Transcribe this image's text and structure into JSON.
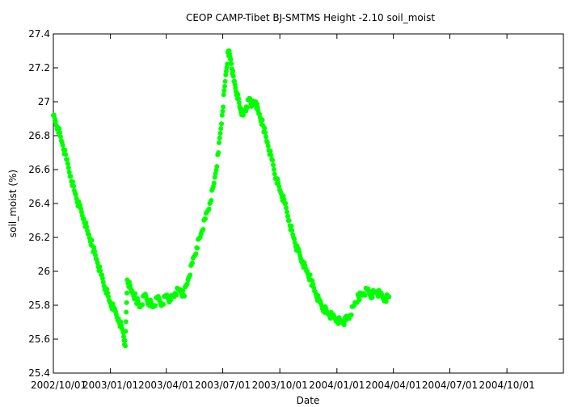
{
  "chart_data": {
    "type": "scatter",
    "title": "CEOP CAMP-Tibet BJ-SMTMS Height -2.10 soil_moist",
    "xlabel": "Date",
    "ylabel": "soil_moist (%)",
    "ylim": [
      25.4,
      27.4
    ],
    "xlim": [
      "2002-10-01",
      "2004-12-31"
    ],
    "yticks": [
      "25.4",
      "25.6",
      "25.8",
      "26",
      "26.2",
      "26.4",
      "26.6",
      "26.8",
      "27",
      "27.2",
      "27.4"
    ],
    "xticks": [
      {
        "date": "2002-10-01",
        "label": "2002/10/01"
      },
      {
        "date": "2003-01-01",
        "label": "2003/01/01"
      },
      {
        "date": "2003-04-01",
        "label": "2003/04/01"
      },
      {
        "date": "2003-07-01",
        "label": "2003/07/01"
      },
      {
        "date": "2003-10-01",
        "label": "2003/10/01"
      },
      {
        "date": "2004-01-01",
        "label": "2004/01/01"
      },
      {
        "date": "2004-04-01",
        "label": "2004/04/01"
      },
      {
        "date": "2004-07-01",
        "label": "2004/07/01"
      },
      {
        "date": "2004-10-01",
        "label": "2004/10/01"
      }
    ],
    "grid": false,
    "marker_color": "#00ff00",
    "series": [
      {
        "points": [
          [
            "2002-10-01",
            26.92
          ],
          [
            "2002-10-08",
            26.85
          ],
          [
            "2002-10-15",
            26.76
          ],
          [
            "2002-10-22",
            26.66
          ],
          [
            "2002-10-29",
            26.56
          ],
          [
            "2002-11-05",
            26.46
          ],
          [
            "2002-11-12",
            26.38
          ],
          [
            "2002-11-19",
            26.31
          ],
          [
            "2002-11-26",
            26.22
          ],
          [
            "2002-12-03",
            26.15
          ],
          [
            "2002-12-10",
            26.07
          ],
          [
            "2002-12-17",
            25.98
          ],
          [
            "2002-12-24",
            25.9
          ],
          [
            "2002-12-31",
            25.82
          ],
          [
            "2003-01-07",
            25.77
          ],
          [
            "2003-01-14",
            25.72
          ],
          [
            "2003-01-21",
            25.65
          ],
          [
            "2003-01-25",
            25.56
          ],
          [
            "2003-01-28",
            25.95
          ],
          [
            "2003-02-04",
            25.88
          ],
          [
            "2003-02-11",
            25.84
          ],
          [
            "2003-02-18",
            25.79
          ],
          [
            "2003-02-25",
            25.86
          ],
          [
            "2003-03-04",
            25.82
          ],
          [
            "2003-03-11",
            25.79
          ],
          [
            "2003-03-18",
            25.84
          ],
          [
            "2003-03-25",
            25.81
          ],
          [
            "2003-04-01",
            25.86
          ],
          [
            "2003-04-08",
            25.83
          ],
          [
            "2003-04-15",
            25.87
          ],
          [
            "2003-04-22",
            25.89
          ],
          [
            "2003-04-29",
            25.86
          ],
          [
            "2003-05-06",
            25.95
          ],
          [
            "2003-05-13",
            26.05
          ],
          [
            "2003-05-20",
            26.14
          ],
          [
            "2003-05-27",
            26.22
          ],
          [
            "2003-06-03",
            26.31
          ],
          [
            "2003-06-10",
            26.4
          ],
          [
            "2003-06-17",
            26.52
          ],
          [
            "2003-06-24",
            26.7
          ],
          [
            "2003-06-30",
            26.92
          ],
          [
            "2003-07-05",
            27.12
          ],
          [
            "2003-07-10",
            27.3
          ],
          [
            "2003-07-14",
            27.25
          ],
          [
            "2003-07-19",
            27.12
          ],
          [
            "2003-07-24",
            27.05
          ],
          [
            "2003-07-29",
            26.96
          ],
          [
            "2003-08-03",
            26.92
          ],
          [
            "2003-08-08",
            26.97
          ],
          [
            "2003-08-13",
            27.02
          ],
          [
            "2003-08-18",
            26.98
          ],
          [
            "2003-08-23",
            27.0
          ],
          [
            "2003-08-28",
            26.93
          ],
          [
            "2003-09-04",
            26.86
          ],
          [
            "2003-09-11",
            26.76
          ],
          [
            "2003-09-18",
            26.66
          ],
          [
            "2003-09-25",
            26.55
          ],
          [
            "2003-10-02",
            26.47
          ],
          [
            "2003-10-09",
            26.4
          ],
          [
            "2003-10-16",
            26.3
          ],
          [
            "2003-10-23",
            26.2
          ],
          [
            "2003-10-30",
            26.12
          ],
          [
            "2003-11-06",
            26.06
          ],
          [
            "2003-11-13",
            26.0
          ],
          [
            "2003-11-20",
            25.95
          ],
          [
            "2003-11-27",
            25.88
          ],
          [
            "2003-12-04",
            25.82
          ],
          [
            "2003-12-11",
            25.78
          ],
          [
            "2003-12-18",
            25.75
          ],
          [
            "2003-12-25",
            25.73
          ],
          [
            "2004-01-01",
            25.72
          ],
          [
            "2004-01-08",
            25.7
          ],
          [
            "2004-01-15",
            25.71
          ],
          [
            "2004-01-22",
            25.74
          ],
          [
            "2004-01-29",
            25.8
          ],
          [
            "2004-02-05",
            25.85
          ],
          [
            "2004-02-12",
            25.87
          ],
          [
            "2004-02-19",
            25.89
          ],
          [
            "2004-02-26",
            25.86
          ],
          [
            "2004-03-04",
            25.88
          ],
          [
            "2004-03-11",
            25.86
          ],
          [
            "2004-03-18",
            25.84
          ],
          [
            "2004-03-25",
            25.85
          ]
        ]
      }
    ]
  }
}
